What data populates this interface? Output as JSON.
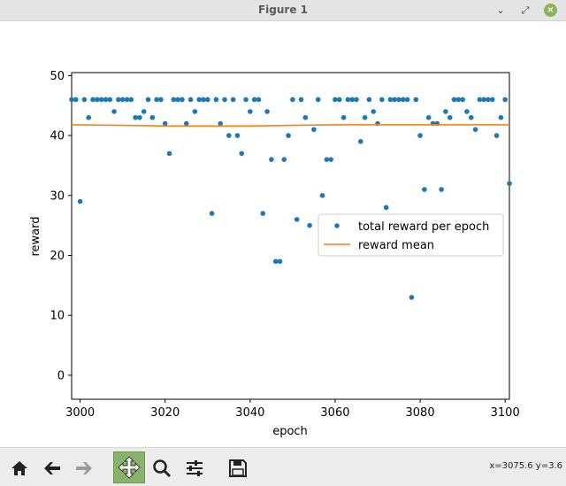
{
  "window": {
    "title": "Figure 1",
    "minimize": "⌄",
    "restore": "⤢",
    "close": "×"
  },
  "toolbar": {
    "buttons": [
      {
        "name": "home-icon"
      },
      {
        "name": "back-arrow-icon"
      },
      {
        "name": "forward-arrow-icon"
      },
      {
        "name": "pan-icon",
        "active": true
      },
      {
        "name": "zoom-icon"
      },
      {
        "name": "configure-subplots-icon"
      },
      {
        "name": "save-icon"
      }
    ],
    "coords": "x=3075.6 y=3.6"
  },
  "colors": {
    "points": "#1f77b4",
    "mean": "#ff7f0e",
    "active_tool": "#8ab36a"
  },
  "chart_data": {
    "type": "scatter",
    "xlabel": "epoch",
    "ylabel": "reward",
    "xlim": [
      2998,
      3101
    ],
    "ylim": [
      -4,
      50.5
    ],
    "xticks": [
      "3000",
      "3020",
      "3040",
      "3060",
      "3080",
      "3100"
    ],
    "yticks": [
      "0",
      "10",
      "20",
      "30",
      "40",
      "50"
    ],
    "legend_position": "center-right",
    "series": [
      {
        "name": "total reward per epoch",
        "kind": "points",
        "x": [
          2998,
          2999,
          3000,
          3001,
          3002,
          3003,
          3004,
          3005,
          3006,
          3007,
          3008,
          3009,
          3010,
          3011,
          3012,
          3013,
          3014,
          3015,
          3016,
          3017,
          3018,
          3019,
          3020,
          3021,
          3022,
          3023,
          3024,
          3025,
          3026,
          3027,
          3028,
          3029,
          3030,
          3031,
          3032,
          3033,
          3034,
          3035,
          3036,
          3037,
          3038,
          3039,
          3040,
          3041,
          3042,
          3043,
          3044,
          3045,
          3046,
          3047,
          3048,
          3049,
          3050,
          3051,
          3052,
          3053,
          3054,
          3055,
          3056,
          3057,
          3058,
          3059,
          3060,
          3061,
          3062,
          3063,
          3064,
          3065,
          3066,
          3067,
          3068,
          3069,
          3070,
          3071,
          3072,
          3073,
          3074,
          3075,
          3076,
          3077,
          3078,
          3079,
          3080,
          3081,
          3082,
          3083,
          3084,
          3085,
          3086,
          3087,
          3088,
          3089,
          3090,
          3091,
          3092,
          3093,
          3094,
          3095,
          3096,
          3097,
          3098,
          3099,
          3100,
          3101
        ],
        "y": [
          46,
          46,
          29,
          46,
          43,
          46,
          46,
          46,
          46,
          46,
          44,
          46,
          46,
          46,
          46,
          43,
          43,
          44,
          46,
          43,
          46,
          46,
          42,
          37,
          46,
          46,
          46,
          42,
          46,
          44,
          46,
          46,
          46,
          27,
          46,
          42,
          46,
          40,
          46,
          40,
          37,
          46,
          44,
          46,
          46,
          27,
          44,
          36,
          19,
          19,
          36,
          40,
          46,
          26,
          46,
          43,
          25,
          41,
          46,
          30,
          36,
          36,
          46,
          46,
          43,
          46,
          46,
          46,
          39,
          43,
          46,
          44,
          42,
          46,
          28,
          46,
          46,
          46,
          46,
          46,
          13,
          46,
          40,
          31,
          43,
          42,
          42,
          31,
          44,
          43,
          46,
          46,
          46,
          44,
          43,
          41,
          46,
          46,
          46,
          46,
          40,
          43,
          46,
          32
        ]
      },
      {
        "name": "reward mean",
        "kind": "line",
        "x": [
          2998,
          3010,
          3020,
          3030,
          3040,
          3050,
          3060,
          3070,
          3080,
          3090,
          3101
        ],
        "y": [
          41.8,
          41.7,
          41.6,
          41.6,
          41.6,
          41.7,
          41.8,
          41.8,
          41.8,
          41.8,
          41.8
        ]
      }
    ]
  }
}
